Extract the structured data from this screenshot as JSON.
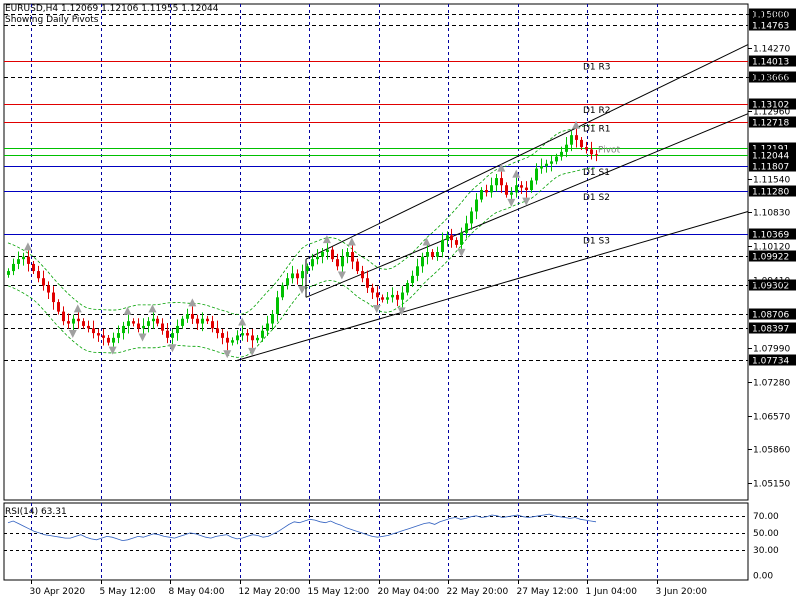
{
  "header": {
    "symbol": "EURUSD,H4",
    "open": "1.12069",
    "high": "1.12106",
    "low": "1.11955",
    "close": "1.12044",
    "indicator_note": "Showing Daily Pivots"
  },
  "colors": {
    "bull": "#00c000",
    "bear": "#e00000",
    "pivot_line": "#00c000",
    "resistance_line": "#e00000",
    "support_line": "#0000c0",
    "grid": "#0000a0",
    "axis": "#000000",
    "bollinger": "#00a000",
    "rsi_line": "#3060c0",
    "fractal": "#a0a0a0",
    "price_box_bg": "#000000"
  },
  "chart_data": [
    {
      "type": "candlestick",
      "symbol": "EURUSD",
      "timeframe": "H4",
      "ylim": [
        1.048,
        1.152
      ],
      "price_axis_ticks": [
        "1.14980",
        "1.14270",
        "1.13666",
        "1.12960",
        "1.11540",
        "1.10830",
        "1.10120",
        "1.09410",
        "1.07990",
        "1.07280",
        "1.06570",
        "1.05860",
        "1.05150"
      ],
      "time_axis_labels": [
        "30 Apr 2020",
        "5 May 12:00",
        "8 May 04:00",
        "12 May 20:00",
        "15 May 12:00",
        "20 May 04:00",
        "22 May 20:00",
        "27 May 12:00",
        "1 Jun 04:00",
        "3 Jun 20:00"
      ],
      "horizontal_levels": [
        {
          "value": 1.15,
          "label": "1.15000",
          "style": "dash",
          "color": "#000000"
        },
        {
          "value": 1.14763,
          "label": "1.14763",
          "style": "dash",
          "color": "#000000"
        },
        {
          "value": 1.14013,
          "label": "1.14013",
          "style": "solid",
          "color": "#e00000",
          "name": "D1 R3"
        },
        {
          "value": 1.13666,
          "label": "1.13666",
          "style": "dash",
          "color": "#000000"
        },
        {
          "value": 1.13102,
          "label": "1.13102",
          "style": "solid",
          "color": "#e00000",
          "name": "D1 R2"
        },
        {
          "value": 1.12718,
          "label": "1.12718",
          "style": "solid",
          "color": "#e00000",
          "name": "D1 R1"
        },
        {
          "value": 1.12191,
          "label": "1.12191",
          "style": "solid",
          "color": "#00c000",
          "name": "Pivot"
        },
        {
          "value": 1.12044,
          "label": "1.12044",
          "style": "solid",
          "color": "#00c000"
        },
        {
          "value": 1.11807,
          "label": "1.11807",
          "style": "solid",
          "color": "#0000c0",
          "name": "D1 S1"
        },
        {
          "value": 1.1128,
          "label": "1.11280",
          "style": "solid",
          "color": "#0000c0",
          "name": "D1 S2"
        },
        {
          "value": 1.10369,
          "label": "1.10369",
          "style": "solid",
          "color": "#0000c0",
          "name": "D1 S3"
        },
        {
          "value": 1.09922,
          "label": "1.09922",
          "style": "dash",
          "color": "#000000"
        },
        {
          "value": 1.09302,
          "label": "1.09302",
          "style": "dash",
          "color": "#000000"
        },
        {
          "value": 1.08706,
          "label": "1.08706",
          "style": "dash",
          "color": "#000000"
        },
        {
          "value": 1.08397,
          "label": "1.08397",
          "style": "dash",
          "color": "#000000"
        },
        {
          "value": 1.07734,
          "label": "1.07734",
          "style": "dash",
          "color": "#000000"
        }
      ],
      "pivot_labels": {
        "r3": "D1 R3",
        "r2": "D1 R2",
        "r1": "D1 R1",
        "pivot": "Pivot",
        "s1": "D1 S1",
        "s2": "D1 S2",
        "s3": "D1 S3"
      },
      "close_path": [
        1.096,
        1.0975,
        1.0985,
        1.099,
        1.0975,
        1.096,
        1.0945,
        1.093,
        1.0915,
        1.0895,
        1.0875,
        1.0855,
        1.085,
        1.086,
        1.0855,
        1.0845,
        1.084,
        1.083,
        1.0825,
        1.082,
        1.081,
        1.082,
        1.083,
        1.0845,
        1.0855,
        1.085,
        1.084,
        1.0845,
        1.0855,
        1.086,
        1.085,
        1.0835,
        1.082,
        1.083,
        1.0845,
        1.086,
        1.087,
        1.086,
        1.085,
        1.086,
        1.0855,
        1.084,
        1.083,
        1.082,
        1.081,
        1.0815,
        1.0825,
        1.083,
        1.0825,
        1.0815,
        1.082,
        1.0835,
        1.085,
        1.087,
        1.0905,
        1.093,
        1.0945,
        1.0955,
        1.0945,
        1.096,
        1.097,
        1.0985,
        1.099,
        1.1,
        1.1005,
        1.0985,
        1.097,
        1.099,
        1.1,
        1.098,
        1.096,
        1.0945,
        1.0925,
        1.0915,
        1.0905,
        1.09,
        1.0905,
        1.091,
        1.09,
        1.0915,
        1.0935,
        1.095,
        1.097,
        1.099,
        1.1,
        1.099,
        1.1,
        1.1025,
        1.1035,
        1.1025,
        1.1015,
        1.104,
        1.106,
        1.1085,
        1.111,
        1.113,
        1.1125,
        1.114,
        1.1155,
        1.114,
        1.112,
        1.1125,
        1.114,
        1.1135,
        1.113,
        1.115,
        1.1175,
        1.118,
        1.1185,
        1.119,
        1.12,
        1.121,
        1.1225,
        1.1245,
        1.1235,
        1.122,
        1.1215,
        1.1205,
        1.1204
      ],
      "rsi": {
        "label": "RSI(14) 63.31",
        "ylim": [
          -5,
          85
        ],
        "ticks": [
          "70.00",
          "50.00",
          "30.00",
          "0.00"
        ],
        "levels": [
          70,
          50,
          30
        ],
        "values": [
          62,
          64,
          61,
          58,
          55,
          52,
          50,
          48,
          47,
          46,
          45,
          44,
          44,
          46,
          48,
          45,
          43,
          42,
          44,
          46,
          45,
          43,
          41,
          42,
          44,
          46,
          45,
          47,
          49,
          48,
          46,
          45,
          44,
          46,
          48,
          50,
          49,
          47,
          45,
          44,
          46,
          47,
          48,
          45,
          43,
          44,
          46,
          48,
          47,
          45,
          46,
          49,
          52,
          56,
          60,
          63,
          62,
          64,
          66,
          65,
          63,
          62,
          64,
          61,
          59,
          56,
          54,
          52,
          50,
          48,
          46,
          45,
          46,
          47,
          49,
          51,
          53,
          55,
          57,
          59,
          61,
          62,
          60,
          63,
          65,
          67,
          68,
          66,
          67,
          69,
          70,
          68,
          69,
          71,
          70,
          68,
          69,
          70,
          71,
          69,
          68,
          69,
          70,
          71,
          72,
          70,
          69,
          68,
          67,
          68,
          66,
          65,
          64,
          63
        ]
      }
    }
  ]
}
